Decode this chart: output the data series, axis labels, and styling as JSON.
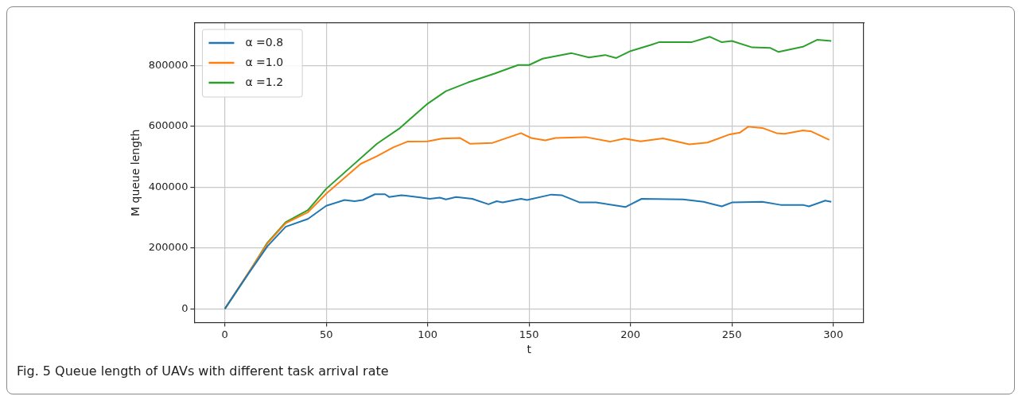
{
  "chart_data": {
    "type": "line",
    "xlabel": "t",
    "ylabel": "M queue length",
    "annotations": [
      "Fig. 5  Queue length of UAVs with different task arrival rate"
    ],
    "xlim": [
      -15,
      315
    ],
    "xticks": [
      0,
      50,
      100,
      150,
      200,
      250,
      300
    ],
    "ylim": [
      -45000,
      940000
    ],
    "yticks": [
      0,
      200000,
      400000,
      600000,
      800000
    ],
    "grid": true,
    "legend": "top left",
    "marker": "none",
    "line_style": "solid",
    "series": [
      {
        "name": "α =0.8",
        "color": "#1f77b4",
        "x": [
          0,
          10,
          21,
          30,
          41,
          50,
          59,
          64,
          68,
          74,
          79,
          81,
          87,
          97,
          101,
          106,
          109,
          114,
          122,
          130,
          134,
          137,
          146,
          149,
          161,
          166,
          175,
          183,
          197.5,
          205.5,
          226,
          236,
          245,
          250,
          265,
          274,
          285,
          288,
          296,
          299
        ],
        "values": [
          0,
          100000,
          206000,
          270000,
          296000,
          339000,
          358000,
          354000,
          358000,
          377000,
          377000,
          368000,
          374000,
          366000,
          362000,
          366000,
          360000,
          368000,
          362000,
          344000,
          354000,
          350000,
          362000,
          358000,
          376000,
          374000,
          350000,
          350000,
          335000,
          362000,
          360000,
          352000,
          337000,
          350000,
          352000,
          342000,
          342000,
          337000,
          356000,
          352000
        ]
      },
      {
        "name": "α =1.0",
        "color": "#ff7f0e",
        "x": [
          0,
          21,
          30,
          41,
          50,
          67,
          75,
          83,
          90,
          100,
          107,
          116,
          121,
          132,
          146,
          151,
          158,
          163,
          178,
          190,
          197,
          205,
          216,
          229,
          238,
          249,
          254,
          258,
          265,
          272,
          276,
          285,
          289,
          298
        ],
        "values": [
          0,
          215000,
          282000,
          318000,
          379000,
          477000,
          502000,
          531000,
          550000,
          551000,
          560000,
          562000,
          543000,
          546000,
          578000,
          562000,
          554000,
          562000,
          565000,
          550000,
          560000,
          551000,
          561000,
          541000,
          547000,
          574000,
          580000,
          599000,
          595000,
          578000,
          576000,
          587000,
          584000,
          556000
        ]
      },
      {
        "name": "α =1.2",
        "color": "#2ca02c",
        "x": [
          0,
          10,
          21,
          30,
          41,
          50,
          75,
          86,
          100,
          109,
          120,
          133,
          144.6,
          150,
          156.7,
          171,
          179.5,
          187.5,
          193,
          200,
          210,
          214,
          230,
          239,
          245,
          250,
          260,
          269,
          273,
          285,
          292,
          299
        ],
        "values": [
          0,
          100000,
          218000,
          285000,
          325000,
          395000,
          543000,
          593000,
          675000,
          716000,
          745000,
          774000,
          802000,
          802000,
          823000,
          841000,
          827000,
          835000,
          825000,
          848000,
          868000,
          877000,
          877000,
          895000,
          877000,
          881000,
          860000,
          858000,
          845000,
          862000,
          885000,
          881000
        ]
      }
    ]
  }
}
